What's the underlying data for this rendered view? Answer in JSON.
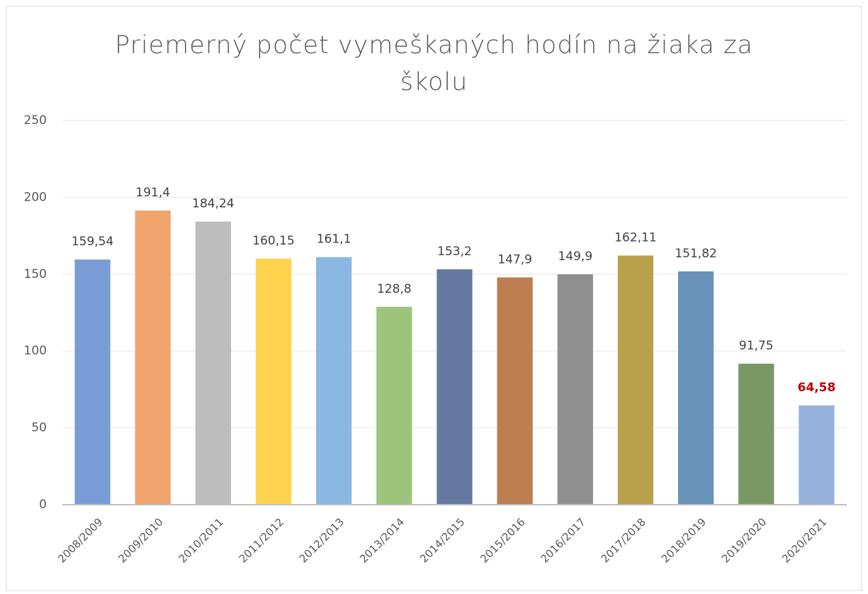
{
  "chart_data": {
    "type": "bar",
    "title": "Priemerný počet vymeškaných hodín na žiaka za školu",
    "categories": [
      "2008/2009",
      "2009/2010",
      "2010/2011",
      "2011/2012",
      "2012/2013",
      "2013/2014",
      "2014/2015",
      "2015/2016",
      "2016/2017",
      "2017/2018",
      "2018/2019",
      "2019/2020",
      "2020/2021"
    ],
    "values": [
      159.54,
      191.4,
      184.24,
      160.15,
      161.1,
      128.8,
      153.2,
      147.9,
      149.9,
      162.11,
      151.82,
      91.75,
      64.58
    ],
    "value_labels": [
      "159,54",
      "191,4",
      "184,24",
      "160,15",
      "161,1",
      "128,8",
      "153,2",
      "147,9",
      "149,9",
      "162,11",
      "151,82",
      "91,75",
      "64,58"
    ],
    "colors": [
      "#7a9cd6",
      "#f2a46f",
      "#bdbdbd",
      "#ffd24d",
      "#8ab8e3",
      "#9cc47a",
      "#66799f",
      "#bd7e52",
      "#8f8f8f",
      "#b9a04b",
      "#6892b8",
      "#7a9866",
      "#97b1dd"
    ],
    "value_label_colors": [
      "#404040",
      "#404040",
      "#404040",
      "#404040",
      "#404040",
      "#404040",
      "#404040",
      "#404040",
      "#404040",
      "#404040",
      "#404040",
      "#404040",
      "#c00000"
    ],
    "ylim": [
      0,
      250
    ],
    "yticks": [
      0,
      50,
      100,
      150,
      200,
      250
    ],
    "grid": true
  }
}
